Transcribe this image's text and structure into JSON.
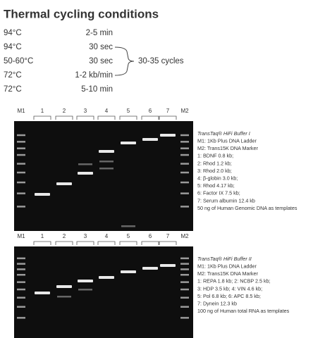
{
  "title": "Thermal cycling conditions",
  "steps": [
    {
      "temp": "94°C",
      "time": "2-5 min"
    },
    {
      "temp": "94°C",
      "time": "30 sec"
    },
    {
      "temp": "50-60°C",
      "time": "30 sec"
    },
    {
      "temp": "72°C",
      "time": "1-2 kb/min"
    },
    {
      "temp": "72°C",
      "time": "5-10 min"
    }
  ],
  "cycles_label": "30-35 cycles",
  "gels": [
    {
      "lanes": [
        "M1",
        "1",
        "2",
        "3",
        "4",
        "5",
        "6",
        "7",
        "M2"
      ],
      "legend": [
        "TransTaq® HiFi Buffer I",
        "M1: 1Kb Plus DNA Ladder",
        "M2: Trans15K DNA Marker",
        "1: BDNF 0.8 kb;",
        "2: Rhod 1.2 kb;",
        "3: Rhod 2.0 kb;",
        "4: β-globin 3.0 kb;",
        "5: Rhod 4.17 kb;",
        "6: Factor IX 7.5 kb;",
        "7: Serum albumin 12.4 kb",
        "50 ng of Human Genomic DNA as templates"
      ]
    },
    {
      "lanes": [
        "M1",
        "1",
        "2",
        "3",
        "4",
        "5",
        "6",
        "7",
        "M2"
      ],
      "legend": [
        "TransTaq® HiFi Buffer II",
        "M1: 1Kb Plus DNA Ladder",
        "M2: Trans15K DNA Marker",
        "1: REPA 1.8 kb;  2: NCBP 2.5 kb;",
        "3: HDP 3.5 kb;    4: VIN 4.6 kb;",
        "5: Pol 6.8 kb;     6: APC 8.5 kb;",
        "7: Dynein 12.3 kb",
        "100 ng of Human total RNA as templates"
      ]
    }
  ]
}
